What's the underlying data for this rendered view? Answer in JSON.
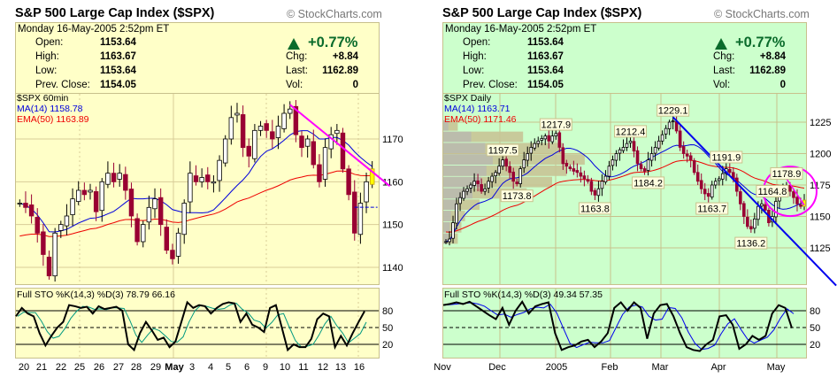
{
  "charts": [
    {
      "title": "S&P 500 Large Cap Index ($SPX)",
      "copyright": "© StockCharts.com",
      "date_line": "Monday  16-May-2005  2:52pm ET",
      "open_label": "Open:",
      "open": "1153.64",
      "high_label": "High:",
      "high": "1163.67",
      "low_label": "Low:",
      "low": "1153.64",
      "prev_label": "Prev. Close:",
      "prev": "1154.05",
      "pct_change": "+0.77%",
      "chg_label": "Chg:",
      "chg": "+8.84",
      "last_label": "Last:",
      "last": "1162.89",
      "vol_label": "Vol:",
      "vol": "0",
      "bg": "#ffffc8",
      "border": "#c8c08c"
    },
    {
      "title": "S&P 500 Large Cap Index ($SPX)",
      "copyright": "© StockCharts.com",
      "date_line": "Monday  16-May-2005  2:52pm ET",
      "open_label": "Open:",
      "open": "1153.64",
      "high_label": "High:",
      "high": "1163.67",
      "low_label": "Low:",
      "low": "1153.64",
      "prev_label": "Prev. Close:",
      "prev": "1154.05",
      "pct_change": "+0.77%",
      "chg_label": "Chg:",
      "chg": "+8.84",
      "last_label": "Last:",
      "last": "1162.89",
      "vol_label": "Vol:",
      "vol": "0",
      "bg": "#ccffcc",
      "border": "#c8c08c"
    }
  ],
  "chart_data": [
    {
      "type": "candlestick",
      "symbol_label": "$SPX 60min",
      "ma_label": "MA(14) 1158.78",
      "ema_label": "EMA(50) 1163.89",
      "ma_period": 14,
      "ema_period": 50,
      "y_ticks": [
        1140,
        1150,
        1160,
        1170
      ],
      "x_ticks": [
        "20",
        "21",
        "22",
        "25",
        "26",
        "27",
        "28",
        "29",
        "May",
        "3",
        "4",
        "5",
        "6",
        "9",
        "10",
        "11",
        "12",
        "13",
        "16"
      ],
      "closes": [
        1155,
        1154,
        1152,
        1148,
        1143,
        1138,
        1148,
        1150,
        1152,
        1156,
        1158,
        1157,
        1158,
        1153,
        1160,
        1162,
        1160,
        1162,
        1158,
        1152,
        1146,
        1150,
        1154,
        1156,
        1150,
        1144,
        1142,
        1148,
        1155,
        1162,
        1160,
        1161,
        1160,
        1160,
        1165,
        1170,
        1175,
        1176,
        1168,
        1166,
        1172,
        1173,
        1172,
        1170,
        1173,
        1176,
        1177,
        1171,
        1168,
        1170,
        1164,
        1160,
        1168,
        1171,
        1172,
        1163,
        1157,
        1148,
        1155,
        1160,
        1163
      ],
      "prev_close_line": 1154.05,
      "trendline": {
        "from": {
          "bar": 46,
          "price": 1178
        },
        "to": {
          "bar": 63,
          "price": 1159
        },
        "color": "#ff00ff"
      },
      "stochastics": {
        "label": "Full STO %K(14,3) %D(3)  78.79  66.16",
        "levels": [
          80,
          50,
          20
        ],
        "k": [
          70,
          85,
          75,
          70,
          40,
          18,
          35,
          50,
          60,
          90,
          88,
          85,
          87,
          75,
          88,
          83,
          85,
          87,
          80,
          20,
          10,
          40,
          60,
          45,
          28,
          32,
          15,
          25,
          60,
          95,
          85,
          90,
          88,
          75,
          85,
          92,
          95,
          93,
          60,
          75,
          55,
          50,
          42,
          85,
          90,
          50,
          10,
          20,
          15,
          15,
          30,
          65,
          75,
          70,
          15,
          35,
          18,
          40,
          60,
          79
        ],
        "d_color": "#009980"
      }
    },
    {
      "type": "candlestick",
      "symbol_label": "$SPX Daily",
      "ma_label": "MA(14) 1163.71",
      "ema_label": "EMA(50) 1171.46",
      "ma_period": 14,
      "ema_period": 50,
      "y_ticks": [
        1125,
        1150,
        1175,
        1200,
        1225
      ],
      "x_ticks": [
        "Nov",
        "Dec",
        "2005",
        "Feb",
        "Mar",
        "Apr",
        "May"
      ],
      "closes": [
        1130,
        1132,
        1145,
        1160,
        1165,
        1170,
        1172,
        1175,
        1178,
        1176,
        1170,
        1172,
        1178,
        1182,
        1185,
        1190,
        1195,
        1190,
        1185,
        1178,
        1176,
        1188,
        1195,
        1200,
        1205,
        1208,
        1210,
        1212,
        1214,
        1210,
        1214,
        1216,
        1205,
        1192,
        1190,
        1188,
        1186,
        1185,
        1182,
        1180,
        1178,
        1170,
        1167,
        1172,
        1178,
        1182,
        1190,
        1195,
        1200,
        1203,
        1205,
        1208,
        1210,
        1202,
        1192,
        1188,
        1186,
        1195,
        1200,
        1205,
        1210,
        1215,
        1220,
        1225,
        1226,
        1218,
        1205,
        1200,
        1198,
        1195,
        1185,
        1178,
        1172,
        1168,
        1166,
        1175,
        1178,
        1180,
        1184,
        1188,
        1185,
        1180,
        1170,
        1160,
        1150,
        1142,
        1140,
        1148,
        1158,
        1160,
        1155,
        1145,
        1150,
        1162,
        1168,
        1172,
        1174,
        1170,
        1165,
        1160,
        1158,
        1163
      ],
      "annotations": [
        {
          "text": "1197.5",
          "bar": 16,
          "price": 1197.5,
          "pos": "above"
        },
        {
          "text": "1173.8",
          "bar": 20,
          "price": 1173.8,
          "pos": "below"
        },
        {
          "text": "1217.9",
          "bar": 31,
          "price": 1217.9,
          "pos": "above"
        },
        {
          "text": "1163.8",
          "bar": 42,
          "price": 1163.8,
          "pos": "below"
        },
        {
          "text": "1212.4",
          "bar": 52,
          "price": 1212.4,
          "pos": "above"
        },
        {
          "text": "1184.2",
          "bar": 57,
          "price": 1184.2,
          "pos": "below"
        },
        {
          "text": "1229.1",
          "bar": 64,
          "price": 1229.1,
          "pos": "above"
        },
        {
          "text": "1163.7",
          "bar": 75,
          "price": 1163.7,
          "pos": "below"
        },
        {
          "text": "1191.9",
          "bar": 79,
          "price": 1191.9,
          "pos": "above"
        },
        {
          "text": "1136.2",
          "bar": 86,
          "price": 1136.2,
          "pos": "below"
        },
        {
          "text": "1164.8",
          "bar": 92,
          "price": 1164.8,
          "pos": "above"
        },
        {
          "text": "1178.9",
          "bar": 96,
          "price": 1178.9,
          "pos": "above"
        }
      ],
      "volume_by_price": [
        {
          "price": 1222,
          "rel": 0.04
        },
        {
          "price": 1213,
          "rel": 0.22
        },
        {
          "price": 1204,
          "rel": 0.33
        },
        {
          "price": 1195,
          "rel": 0.39
        },
        {
          "price": 1186,
          "rel": 0.34
        },
        {
          "price": 1177,
          "rel": 0.3
        },
        {
          "price": 1168,
          "rel": 0.23
        },
        {
          "price": 1159,
          "rel": 0.1
        },
        {
          "price": 1150,
          "rel": 0.06
        },
        {
          "price": 1141,
          "rel": 0.05
        },
        {
          "price": 1132,
          "rel": 0.04
        }
      ],
      "trendline": {
        "from": {
          "bar": 64,
          "price": 1229
        },
        "to": {
          "bar": 110,
          "price": 1095
        },
        "color": "#0000ee"
      },
      "short_trendline": {
        "from": {
          "bar": 96,
          "price": 1180
        },
        "to": {
          "bar": 101,
          "price": 1159
        },
        "color": "#ff00ff"
      },
      "highlight_circle": {
        "bar": 97,
        "price": 1170,
        "color": "#ff00ff"
      },
      "stochastics": {
        "label": "Full STO %K(14,3) %D(3)  49.34  57.35",
        "levels": [
          80,
          50,
          20
        ],
        "k": [
          90,
          92,
          95,
          92,
          96,
          88,
          80,
          72,
          65,
          85,
          55,
          80,
          96,
          75,
          88,
          92,
          95,
          40,
          10,
          15,
          18,
          25,
          28,
          15,
          25,
          40,
          85,
          95,
          80,
          95,
          85,
          30,
          75,
          90,
          92,
          70,
          40,
          15,
          10,
          8,
          20,
          28,
          70,
          72,
          55,
          12,
          20,
          35,
          28,
          35,
          75,
          90,
          85,
          49
        ],
        "d_color": "#0000ee"
      }
    }
  ]
}
